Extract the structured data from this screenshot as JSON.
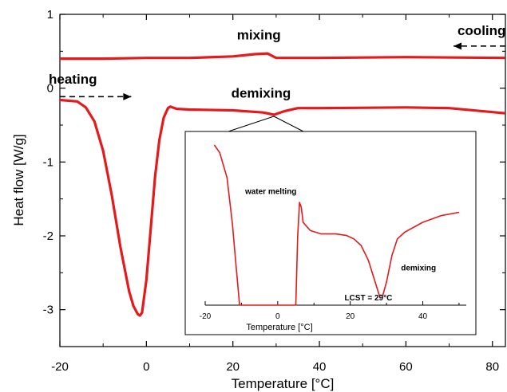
{
  "chart_data": [
    {
      "type": "line",
      "xlabel": "Temperature [°C]",
      "ylabel": "Heat flow [W/g]",
      "xlim": [
        -20,
        83
      ],
      "ylim": [
        -3.5,
        1
      ],
      "x_ticks": [
        -20,
        0,
        20,
        40,
        60,
        80
      ],
      "x_tick_labels": [
        "-20",
        "0",
        "20",
        "40",
        "60",
        "80"
      ],
      "y_ticks": [
        1,
        0,
        -1,
        -2,
        -3
      ],
      "y_tick_labels": [
        "1",
        "0",
        "-1",
        "-2",
        "-3"
      ],
      "grid": false,
      "series": [
        {
          "name": "cooling",
          "color": "#e41a1c",
          "x": [
            -20,
            -10,
            0,
            10,
            20,
            25,
            28,
            29,
            30,
            40,
            60,
            83
          ],
          "y": [
            0.4,
            0.4,
            0.41,
            0.41,
            0.43,
            0.46,
            0.47,
            0.44,
            0.41,
            0.41,
            0.42,
            0.41
          ]
        },
        {
          "name": "heating",
          "color": "#e41a1c",
          "x": [
            -20,
            -16,
            -14,
            -12,
            -10,
            -8,
            -6,
            -4,
            -3,
            -2,
            -1.5,
            -1,
            0,
            1,
            2,
            3,
            4,
            5,
            5.5,
            6,
            7,
            10,
            20,
            27,
            29.5,
            32,
            35,
            40,
            60,
            70,
            83
          ],
          "y": [
            -0.16,
            -0.18,
            -0.26,
            -0.45,
            -0.85,
            -1.45,
            -2.15,
            -2.75,
            -2.95,
            -3.06,
            -3.08,
            -3.04,
            -2.6,
            -1.9,
            -1.2,
            -0.7,
            -0.4,
            -0.27,
            -0.25,
            -0.26,
            -0.28,
            -0.29,
            -0.3,
            -0.33,
            -0.36,
            -0.31,
            -0.27,
            -0.27,
            -0.26,
            -0.27,
            -0.34
          ]
        }
      ],
      "annotations": [
        {
          "text": "mixing",
          "x": 26,
          "y": 0.66
        },
        {
          "text": "cooling",
          "x": 77.5,
          "y": 0.72,
          "arrow": "left"
        },
        {
          "text": "heating",
          "x": -17,
          "y": 0.06,
          "arrow": "right"
        },
        {
          "text": "demixing",
          "x": 26.5,
          "y": -0.13
        }
      ]
    },
    {
      "type": "line",
      "xlabel": "Temperature [°C]",
      "xlim": [
        -20,
        52
      ],
      "x_ticks": [
        -20,
        0,
        20,
        40
      ],
      "x_tick_labels": [
        "-20",
        "0",
        "20",
        "40"
      ],
      "grid": false,
      "series": [
        {
          "color": "#e41a1c",
          "x": [
            -17.5,
            -16,
            -14,
            -12.5,
            -11.5,
            -10.5,
            5,
            5.5,
            6,
            6.5,
            7,
            9,
            12,
            16,
            19,
            21,
            23,
            25,
            27,
            28,
            29,
            30,
            31.5,
            33,
            35,
            40,
            45,
            50
          ],
          "y": [
            0.967,
            0.92,
            0.77,
            0.49,
            0.24,
            0.0,
            0.0,
            0.41,
            0.62,
            0.59,
            0.5,
            0.45,
            0.43,
            0.43,
            0.42,
            0.4,
            0.36,
            0.27,
            0.13,
            0.06,
            0.06,
            0.14,
            0.3,
            0.4,
            0.44,
            0.5,
            0.54,
            0.56
          ]
        }
      ],
      "annotations": [
        {
          "text": "water melting",
          "x": -9,
          "y": 0.67
        },
        {
          "text": "demixing",
          "x": 34,
          "y": 0.21
        },
        {
          "text": "LCST = 29°C",
          "x": 25,
          "y": 0.03
        }
      ]
    }
  ]
}
